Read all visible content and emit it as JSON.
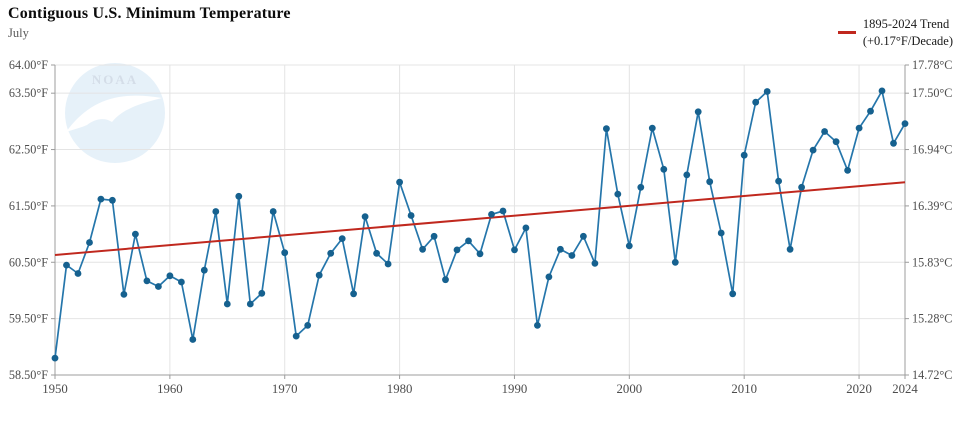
{
  "header": {
    "title": "Contiguous U.S. Minimum Temperature",
    "subtitle": "July"
  },
  "legend": {
    "line1": "1895-2024 Trend",
    "line2": "(+0.17°F/Decade)"
  },
  "watermark": {
    "text": "NOAA"
  },
  "chart_data": {
    "type": "line",
    "title": "Contiguous U.S. Minimum Temperature",
    "subtitle": "July",
    "series_name": "July minimum temperature (°F)",
    "x_range": [
      1950,
      2024
    ],
    "ylim_f": [
      58.5,
      64.0
    ],
    "grid": true,
    "legend_position": "top-right",
    "years": [
      1950,
      1951,
      1952,
      1953,
      1954,
      1955,
      1956,
      1957,
      1958,
      1959,
      1960,
      1961,
      1962,
      1963,
      1964,
      1965,
      1966,
      1967,
      1968,
      1969,
      1970,
      1971,
      1972,
      1973,
      1974,
      1975,
      1976,
      1977,
      1978,
      1979,
      1980,
      1981,
      1982,
      1983,
      1984,
      1985,
      1986,
      1987,
      1988,
      1989,
      1990,
      1991,
      1992,
      1993,
      1994,
      1995,
      1996,
      1997,
      1998,
      1999,
      2000,
      2001,
      2002,
      2003,
      2004,
      2005,
      2006,
      2007,
      2008,
      2009,
      2010,
      2011,
      2012,
      2013,
      2014,
      2015,
      2016,
      2017,
      2018,
      2019,
      2020,
      2021,
      2022,
      2023,
      2024
    ],
    "values_f": [
      58.8,
      60.45,
      60.3,
      60.85,
      61.62,
      61.6,
      59.93,
      61.0,
      60.17,
      60.07,
      60.26,
      60.15,
      59.13,
      60.36,
      61.4,
      59.76,
      61.67,
      59.76,
      59.95,
      61.4,
      60.67,
      59.19,
      59.38,
      60.27,
      60.66,
      60.92,
      59.94,
      61.31,
      60.66,
      60.47,
      61.92,
      61.33,
      60.73,
      60.96,
      60.19,
      60.72,
      60.88,
      60.65,
      61.35,
      61.41,
      60.72,
      61.11,
      59.38,
      60.24,
      60.73,
      60.62,
      60.96,
      60.48,
      62.87,
      61.71,
      60.79,
      61.83,
      62.88,
      62.15,
      60.5,
      62.05,
      63.17,
      61.93,
      61.02,
      59.94,
      62.4,
      63.34,
      63.53,
      61.94,
      60.73,
      61.83,
      62.49,
      62.82,
      62.64,
      62.13,
      62.88,
      63.18,
      63.54,
      62.61,
      62.96
    ],
    "trend": {
      "label": "1895-2024 Trend",
      "rate": "+0.17°F/Decade",
      "start_year": 1950,
      "end_year": 2024,
      "start_f": 60.63,
      "end_f": 61.92
    },
    "yticks": [
      {
        "value": 64.0,
        "f": "64.00°F",
        "c": "17.78°C"
      },
      {
        "value": 63.5,
        "f": "63.50°F",
        "c": "17.50°C"
      },
      {
        "value": 62.5,
        "f": "62.50°F",
        "c": "16.94°C"
      },
      {
        "value": 61.5,
        "f": "61.50°F",
        "c": "16.39°C"
      },
      {
        "value": 60.5,
        "f": "60.50°F",
        "c": "15.83°C"
      },
      {
        "value": 59.5,
        "f": "59.50°F",
        "c": "15.28°C"
      },
      {
        "value": 58.5,
        "f": "58.50°F",
        "c": "14.72°C"
      }
    ],
    "xticks": [
      1950,
      1960,
      1970,
      1980,
      1990,
      2000,
      2010,
      2020,
      2024
    ],
    "colors": {
      "line": "#2576ab",
      "point": "#16618f",
      "trend": "#c0281e",
      "grid": "#e4e4e4",
      "axis": "#9c9c9c",
      "tick_label": "#4d4d4d",
      "watermark_circle": "#d3e6f5",
      "watermark_text": "#b2c3d6",
      "watermark_bird": "#ffffff"
    }
  }
}
